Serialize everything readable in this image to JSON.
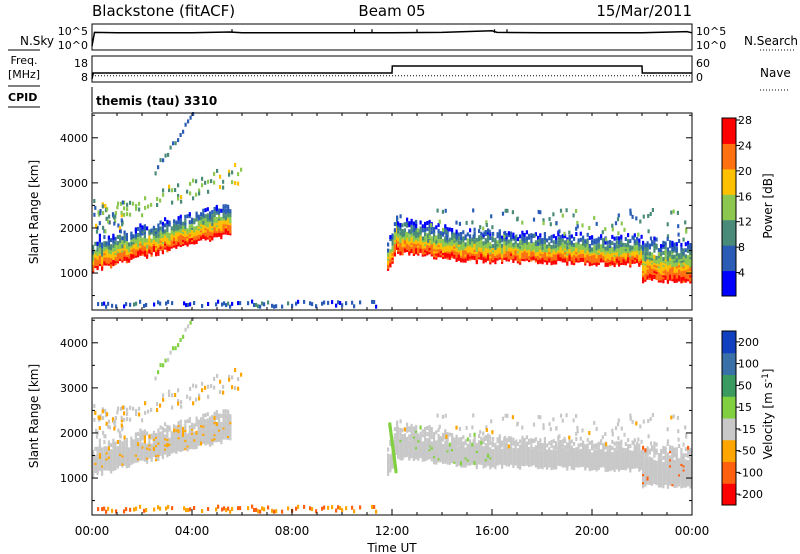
{
  "header": {
    "station": "Blackstone (fitACF)",
    "beam": "Beam 05",
    "date": "15/Mar/2011"
  },
  "left_labels": {
    "nsky": "N.Sky",
    "freq_line1": "Freq.",
    "freq_line2": "[MHz]",
    "cpid": "CPID"
  },
  "right_labels": {
    "nsearch": "N.Search",
    "nave": "Nave"
  },
  "cpid_text": "themis (tau) 3310",
  "chart_data": [
    {
      "type": "line",
      "title": "",
      "left_axis": {
        "label": "N.Sky",
        "ticks": [
          "10^5",
          "10^0"
        ]
      },
      "right_axis": {
        "label": "N.Search",
        "ticks": [
          "10^5",
          "10^0"
        ]
      },
      "x": [
        0,
        0.1,
        1,
        2,
        4,
        5.5,
        6,
        8,
        10,
        12,
        14,
        16,
        16.2,
        18,
        20,
        22,
        23.8,
        24
      ],
      "y": [
        0,
        3.4,
        3.3,
        3.3,
        3.3,
        3.5,
        3.3,
        3.3,
        3.3,
        3.3,
        3.4,
        3.8,
        3.4,
        3.3,
        3.3,
        3.3,
        3.6,
        3.3
      ]
    },
    {
      "type": "line",
      "title": "",
      "left_axis": {
        "label": "Freq. [MHz]",
        "ticks": [
          "18",
          "8"
        ]
      },
      "right_axis": {
        "label": "Nave",
        "ticks": [
          "60",
          "0"
        ]
      },
      "freq_x": [
        0,
        0.05,
        12,
        12.01,
        22,
        22.01,
        24
      ],
      "freq_y": [
        8,
        11,
        11,
        14.5,
        14.5,
        11,
        11
      ],
      "nave_x": [
        0,
        24
      ],
      "nave_y": [
        10,
        10
      ]
    },
    {
      "type": "heatmap",
      "title": "",
      "ylabel": "Slant Range [km]",
      "y_ticks": [
        "1000",
        "2000",
        "3000",
        "4000"
      ],
      "xlim": [
        0,
        24
      ],
      "ylim": [
        180,
        4550
      ],
      "colorbar": {
        "label": "Power [dB]",
        "ticks": [
          "4",
          "8",
          "12",
          "16",
          "20",
          "24",
          "28"
        ],
        "range": [
          0,
          32
        ],
        "colors": [
          "#0000ff",
          "#2a5cb5",
          "#4a8a78",
          "#8cc850",
          "#ffc000",
          "#ff7010",
          "#ff0000"
        ]
      },
      "bands": [
        {
          "x0": 0,
          "x1": 5.5,
          "lo0": 1100,
          "lo1": 1900,
          "w0": 650,
          "w1": 650
        },
        {
          "x0": 11.8,
          "x1": 12.2,
          "lo0": 1050,
          "lo1": 1600,
          "w0": 600,
          "w1": 800
        },
        {
          "x0": 12.2,
          "x1": 16,
          "lo0": 1500,
          "lo1": 1250,
          "w0": 700,
          "w1": 650
        },
        {
          "x0": 16,
          "x1": 22,
          "lo0": 1300,
          "lo1": 1200,
          "w0": 600,
          "w1": 600
        },
        {
          "x0": 22,
          "x1": 23.9,
          "lo0": 850,
          "lo1": 850,
          "w0": 900,
          "w1": 900
        }
      ]
    },
    {
      "type": "heatmap",
      "title": "",
      "ylabel": "Slant Range [km]",
      "xlabel": "Time UT",
      "y_ticks": [
        "1000",
        "2000",
        "3000",
        "4000"
      ],
      "x_ticks": [
        "00:00",
        "04:00",
        "08:00",
        "12:00",
        "16:00",
        "20:00",
        "00:00"
      ],
      "xlim": [
        0,
        24
      ],
      "ylim": [
        180,
        4550
      ],
      "colorbar": {
        "label": "Velocity [m s^-1]",
        "ticks": [
          "200",
          "100",
          "50",
          "15",
          "-15",
          "-50",
          "-100",
          "-200"
        ],
        "range": [
          -250,
          250
        ],
        "colors": [
          "#1040c0",
          "#3a70a8",
          "#3a9a60",
          "#80d040",
          "#c8c8c8",
          "#ffa500",
          "#ff6010",
          "#ff0000"
        ]
      }
    }
  ]
}
